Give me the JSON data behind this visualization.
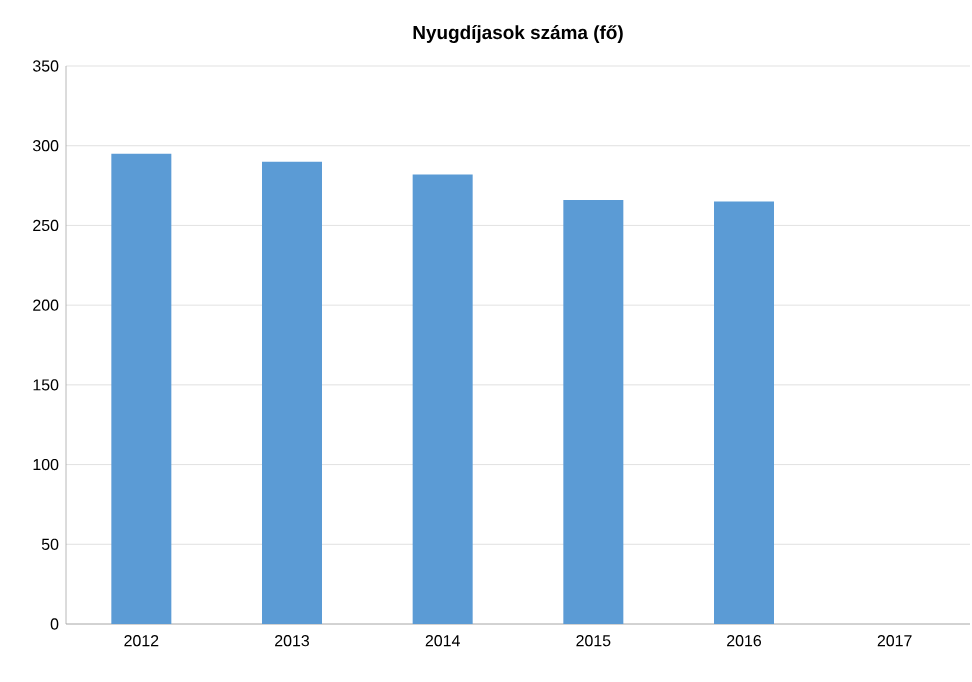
{
  "chart_data": {
    "type": "bar",
    "title": "Nyugdíjasok száma (fő)",
    "categories": [
      "2012",
      "2013",
      "2014",
      "2015",
      "2016",
      "2017"
    ],
    "values": [
      295,
      290,
      282,
      266,
      265,
      null
    ],
    "color": "#5b9bd5",
    "ylim": [
      0,
      350
    ],
    "yticks": [
      0,
      50,
      100,
      150,
      200,
      250,
      300,
      350
    ],
    "grid": "y"
  }
}
